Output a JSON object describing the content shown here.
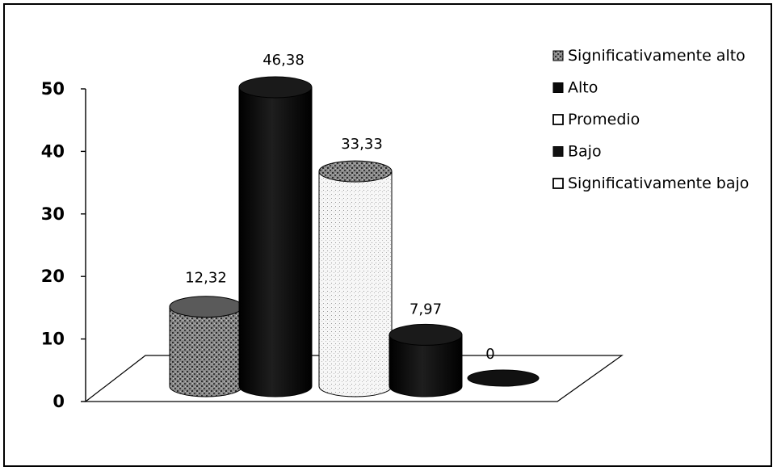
{
  "chart_data": {
    "type": "bar",
    "style": "3d-cylinder",
    "categories": [
      "Significativamente alto",
      "Alto",
      "Promedio",
      "Bajo",
      "Significativamente bajo"
    ],
    "values": [
      12.32,
      46.38,
      33.33,
      7.97,
      0
    ],
    "value_labels": [
      "12,32",
      "46,38",
      "33,33",
      "7,97",
      "0"
    ],
    "ylim": [
      0,
      50
    ],
    "yticks": [
      0,
      10,
      20,
      30,
      40,
      50
    ],
    "ytick_labels": [
      "0",
      "10",
      "20",
      "30",
      "40",
      "50"
    ],
    "grid": false,
    "legend_position": "top-right",
    "legend": [
      {
        "label": "Significativamente alto",
        "color": "#7a7a7a",
        "pattern": "speckle-dark"
      },
      {
        "label": "Alto",
        "color": "#0a0a0a",
        "pattern": "solid"
      },
      {
        "label": "Promedio",
        "color": "#ffffff",
        "pattern": "hollow"
      },
      {
        "label": "Bajo",
        "color": "#111111",
        "pattern": "solid"
      },
      {
        "label": "Significativamente bajo",
        "color": "#ffffff",
        "pattern": "hollow"
      }
    ],
    "bar_colors": [
      "#777777",
      "#0b0b0b",
      "#f2f2f2",
      "#0d0d0d",
      "#111111"
    ]
  }
}
